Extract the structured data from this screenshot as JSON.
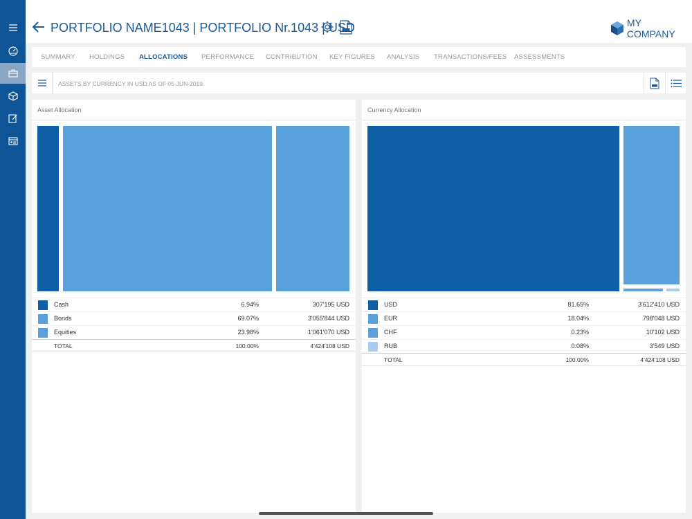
{
  "header": {
    "title": "PORTFOLIO NAME1043 | PORTFOLIO Nr.1043 | USD",
    "company": "MY COMPANY"
  },
  "sidebar": {
    "items": [
      {
        "icon": "menu-icon"
      },
      {
        "icon": "dashboard-icon"
      },
      {
        "icon": "briefcase-icon",
        "active": true
      },
      {
        "icon": "cube-icon"
      },
      {
        "icon": "edit-icon"
      },
      {
        "icon": "id-card-icon"
      }
    ]
  },
  "tabs": [
    {
      "label": "SUMMARY"
    },
    {
      "label": "HOLDINGS"
    },
    {
      "label": "ALLOCATIONS",
      "active": true
    },
    {
      "label": "PERFORMANCE"
    },
    {
      "label": "CONTRIBUTION"
    },
    {
      "label": "KEY FIGURES"
    },
    {
      "label": "ANALYSIS"
    },
    {
      "label": "TRANSACTIONS/FEES"
    },
    {
      "label": "ASSESSMENTS"
    }
  ],
  "toolbar": {
    "title": "ASSETS BY CURRENCY IN USD AS OF 05-JUN-2019"
  },
  "asset_allocation": {
    "title": "Asset Allocation",
    "rows": [
      {
        "name": "Cash",
        "pct": "6.94%",
        "value": "307'195 USD",
        "color": "#0f5fa6"
      },
      {
        "name": "Bonds",
        "pct": "69.07%",
        "value": "3'055'844 USD",
        "color": "#5aa0dc"
      },
      {
        "name": "Equities",
        "pct": "23.98%",
        "value": "1'061'070 USD",
        "color": "#5aa0dc"
      }
    ],
    "total": {
      "name": "TOTAL",
      "pct": "100.00%",
      "value": "4'424'108 USD"
    }
  },
  "currency_allocation": {
    "title": "Currency Allocation",
    "rows": [
      {
        "name": "USD",
        "pct": "81.65%",
        "value": "3'612'410 USD",
        "color": "#0f5fa6"
      },
      {
        "name": "EUR",
        "pct": "18.04%",
        "value": "798'048 USD",
        "color": "#5aa0dc"
      },
      {
        "name": "CHF",
        "pct": "0.23%",
        "value": "10'102 USD",
        "color": "#5aa0dc"
      },
      {
        "name": "RUB",
        "pct": "0.08%",
        "value": "3'549 USD",
        "color": "#a9cdee"
      }
    ],
    "total": {
      "name": "TOTAL",
      "pct": "100.00%",
      "value": "4'424'108 USD"
    }
  }
}
